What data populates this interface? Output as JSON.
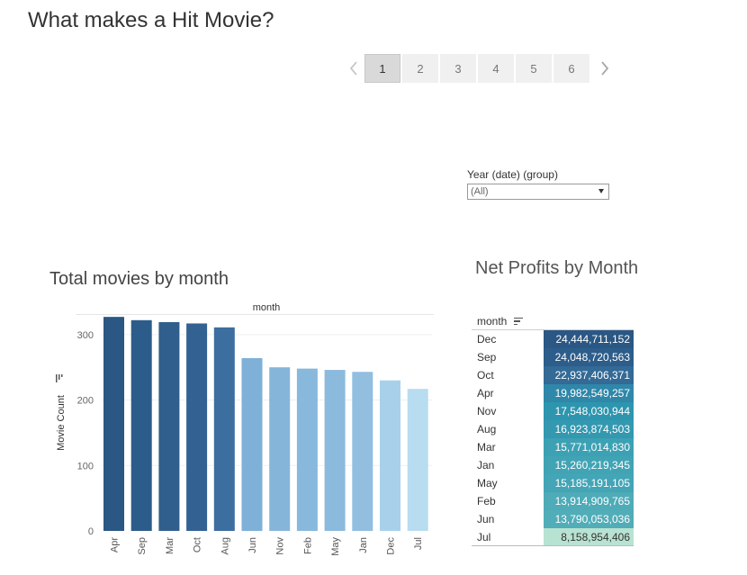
{
  "page": {
    "title": "What makes a Hit Movie?"
  },
  "pager": {
    "prev_icon": "chevron-left-icon",
    "next_icon": "chevron-right-icon",
    "pages": [
      "1",
      "2",
      "3",
      "4",
      "5",
      "6"
    ],
    "active": "1"
  },
  "filter": {
    "label": "Year (date) (group)",
    "value": "(All)"
  },
  "chart_data": [
    {
      "type": "bar",
      "title": "Total movies by month",
      "xlabel": "month",
      "ylabel": "Movie Count",
      "categories": [
        "Apr",
        "Sep",
        "Mar",
        "Oct",
        "Aug",
        "Jun",
        "Nov",
        "Feb",
        "May",
        "Jan",
        "Dec",
        "Jul"
      ],
      "values": [
        327,
        322,
        319,
        317,
        311,
        264,
        250,
        248,
        246,
        243,
        230,
        217
      ],
      "yticks": [
        "0",
        "100",
        "200",
        "300"
      ],
      "ylim": [
        0,
        330
      ],
      "grid": true,
      "colors": [
        "#2a5783",
        "#2c5c8a",
        "#305f8d",
        "#336292",
        "#3c6ea0",
        "#7fb0d8",
        "#86b5da",
        "#88b8dc",
        "#8cbadd",
        "#92bee0",
        "#a9d0eb",
        "#b8dcf0"
      ]
    },
    {
      "type": "table",
      "title": "Net Profits by Month",
      "column_header": "month",
      "rows": [
        {
          "month": "Dec",
          "value": "24,444,711,152",
          "color": "#2a5783"
        },
        {
          "month": "Sep",
          "value": "24,048,720,563",
          "color": "#2d5d8a"
        },
        {
          "month": "Oct",
          "value": "22,937,406,371",
          "color": "#336a96"
        },
        {
          "month": "Apr",
          "value": "19,982,549,257",
          "color": "#2f87a9"
        },
        {
          "month": "Nov",
          "value": "17,548,030,944",
          "color": "#2e95ae"
        },
        {
          "month": "Aug",
          "value": "16,923,874,503",
          "color": "#3398b0"
        },
        {
          "month": "Mar",
          "value": "15,771,014,830",
          "color": "#3da1b4"
        },
        {
          "month": "Jan",
          "value": "15,260,219,345",
          "color": "#41a4b5"
        },
        {
          "month": "May",
          "value": "15,185,191,105",
          "color": "#43a5b6"
        },
        {
          "month": "Feb",
          "value": "13,914,909,765",
          "color": "#4eabb7"
        },
        {
          "month": "Jun",
          "value": "13,790,053,036",
          "color": "#51adb8"
        },
        {
          "month": "Jul",
          "value": "8,158,954,406",
          "color": "#b8e2d2",
          "text_color": "#333333"
        }
      ]
    }
  ]
}
